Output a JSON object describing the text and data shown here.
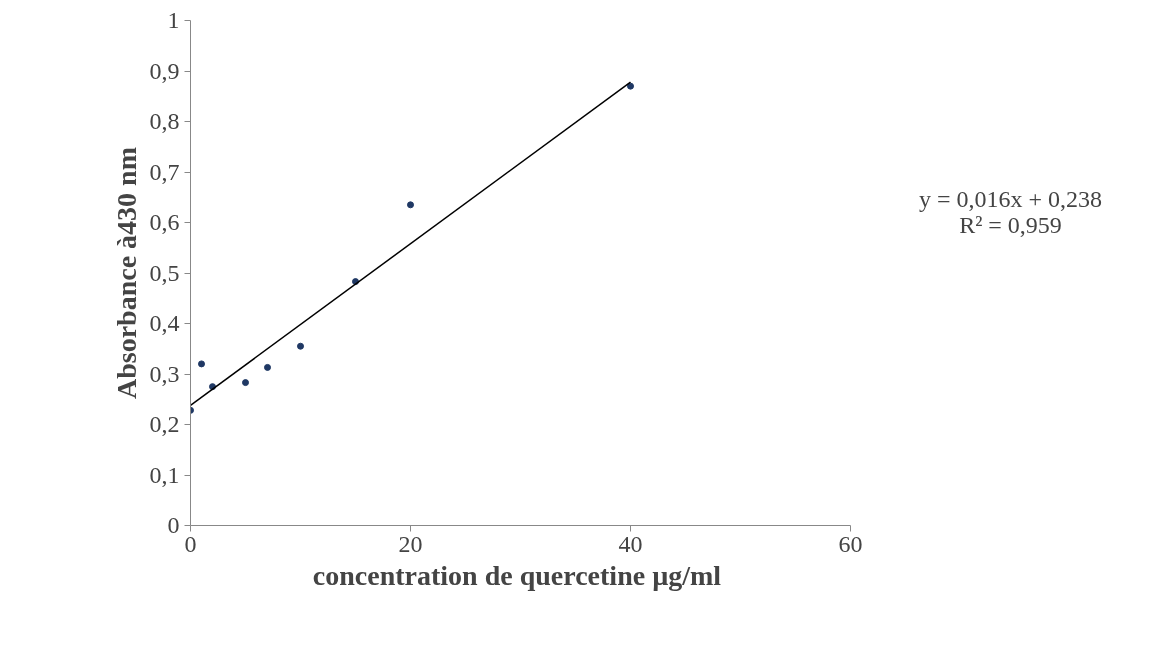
{
  "chart_data": {
    "type": "scatter",
    "xlabel": "concentration de  quercetine µg/ml",
    "ylabel": "Absorbance à430 nm",
    "x": [
      0,
      1,
      2,
      5,
      7,
      10,
      15,
      20,
      40
    ],
    "series": [
      {
        "type": "scatter",
        "color": "#1f3864",
        "values": [
          0.228,
          0.32,
          0.275,
          0.283,
          0.313,
          0.355,
          0.483,
          0.635,
          0.87
        ],
        "marker": "circle"
      },
      {
        "type": "line",
        "color": "#000000",
        "x": [
          0,
          40
        ],
        "values": [
          0.238,
          0.878
        ],
        "line_style": "solid"
      }
    ],
    "xlim": [
      0,
      60
    ],
    "xticks": [
      0,
      20,
      40,
      60
    ],
    "ylim": [
      0,
      1
    ],
    "yticks": [
      0,
      {
        "value": 0.1,
        "label": "0,1"
      },
      {
        "value": 0.2,
        "label": "0,2"
      },
      {
        "value": 0.3,
        "label": "0,3"
      },
      {
        "value": 0.4,
        "label": "0,4"
      },
      {
        "value": 0.5,
        "label": "0,5"
      },
      {
        "value": 0.6,
        "label": "0,6"
      },
      {
        "value": 0.7,
        "label": "0,7"
      },
      {
        "value": 0.8,
        "label": "0,8"
      },
      {
        "value": 0.9,
        "label": "0,9"
      },
      1
    ],
    "grid": false,
    "annotations": [
      "y = 0,016x + 0,238",
      "R² = 0,959"
    ]
  }
}
